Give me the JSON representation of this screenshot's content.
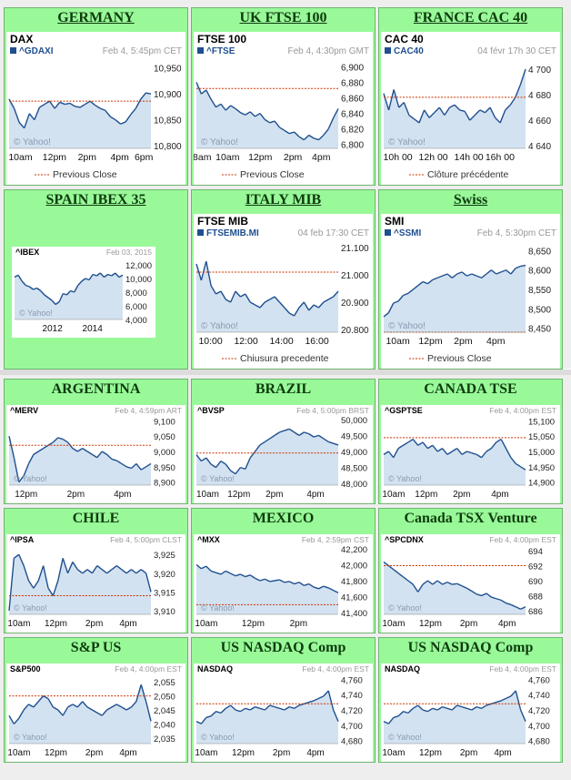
{
  "colors": {
    "panel_bg": "#99f999",
    "line": "#1f4f8f",
    "fill": "#d3e2f1",
    "prev_close": "#cc3300"
  },
  "chart_data": [
    {
      "panel_title": "GERMANY",
      "underline": true,
      "type": "area",
      "label": "DAX",
      "symbol": "^GDAXI",
      "timestamp": "Feb 4, 5:45pm CET",
      "yticks": [
        "10,950",
        "10,900",
        "10,850",
        "10,800"
      ],
      "ylim": [
        10795,
        10960
      ],
      "prev_close": 10886,
      "xticks": [
        "10am",
        "12pm",
        "2pm",
        "4pm",
        "6pm"
      ],
      "xpos": [
        0.08,
        0.32,
        0.55,
        0.78,
        0.95
      ],
      "values": [
        10890,
        10872,
        10845,
        10834,
        10862,
        10850,
        10874,
        10880,
        10886,
        10872,
        10884,
        10880,
        10882,
        10876,
        10874,
        10880,
        10886,
        10878,
        10872,
        10868,
        10856,
        10850,
        10842,
        10846,
        10860,
        10872,
        10890,
        10902,
        10900
      ],
      "watermark": "© Yahoo!",
      "legend": "Previous Close",
      "mini": false
    },
    {
      "panel_title": "UK FTSE 100",
      "underline": true,
      "type": "area",
      "label": "FTSE 100",
      "symbol": "^FTSE",
      "timestamp": "Feb 4, 4:30pm GMT",
      "yticks": [
        "6,900",
        "6,880",
        "6,860",
        "6,840",
        "6,820",
        "6,800"
      ],
      "ylim": [
        6795,
        6905
      ],
      "prev_close": 6872,
      "xticks": [
        "8am",
        "10am",
        "12pm",
        "2pm",
        "4pm"
      ],
      "xpos": [
        0.04,
        0.22,
        0.45,
        0.68,
        0.88
      ],
      "values": [
        6880,
        6865,
        6870,
        6858,
        6848,
        6852,
        6844,
        6850,
        6846,
        6841,
        6838,
        6842,
        6836,
        6840,
        6832,
        6828,
        6830,
        6822,
        6818,
        6814,
        6816,
        6810,
        6806,
        6812,
        6808,
        6806,
        6812,
        6820,
        6834,
        6846
      ],
      "watermark": "© Yahoo!",
      "legend": "Previous Close",
      "mini": false
    },
    {
      "panel_title": "FRANCE CAC 40",
      "underline": true,
      "type": "area",
      "label": "CAC 40",
      "symbol": "CAC40",
      "timestamp": "04 févr 17h 30 CET",
      "yticks": [
        "4 700",
        "4 680",
        "4 660",
        "4 640"
      ],
      "ylim": [
        4638,
        4705
      ],
      "prev_close": 4678,
      "xticks": [
        "10h 00",
        "12h 00",
        "14h 00",
        "16h 00"
      ],
      "xpos": [
        0.1,
        0.35,
        0.6,
        0.82
      ],
      "values": [
        4681,
        4668,
        4684,
        4670,
        4674,
        4664,
        4661,
        4658,
        4668,
        4662,
        4666,
        4670,
        4664,
        4670,
        4672,
        4668,
        4667,
        4660,
        4664,
        4668,
        4666,
        4670,
        4662,
        4658,
        4668,
        4672,
        4678,
        4688,
        4700
      ],
      "watermark": "© Yahoo!",
      "legend": "Clôture précédente",
      "mini": false
    },
    {
      "panel_title": "SPAIN IBEX 35",
      "underline": true,
      "type": "area",
      "label": "^IBEX",
      "symbol": "",
      "timestamp": "Feb 03, 2015",
      "yticks": [
        "12,000",
        "10,000",
        "8,000",
        "6,000",
        "4,000"
      ],
      "ylim": [
        4000,
        12800
      ],
      "prev_close": null,
      "xticks": [
        "2012",
        "2014"
      ],
      "xpos": [
        0.35,
        0.72
      ],
      "values": [
        10200,
        10500,
        9600,
        9000,
        8800,
        8400,
        8600,
        8200,
        7600,
        7200,
        6800,
        6200,
        6600,
        7800,
        7600,
        8200,
        8000,
        9000,
        9600,
        10000,
        9800,
        10600,
        10400,
        10800,
        10200,
        10600,
        10400,
        10800,
        10200,
        10500
      ],
      "watermark": "© Yahoo!",
      "legend": "",
      "mini": true
    },
    {
      "panel_title": "ITALY MIB",
      "underline": true,
      "type": "area",
      "label": "FTSE MIB",
      "symbol": "FTSEMIB.MI",
      "timestamp": "04 feb 17:30 CET",
      "yticks": [
        "21.100",
        "21.000",
        "20.900",
        "20.800"
      ],
      "ylim": [
        20790,
        21110
      ],
      "prev_close": 21010,
      "xticks": [
        "10:00",
        "12:00",
        "14:00",
        "16:00"
      ],
      "xpos": [
        0.1,
        0.35,
        0.6,
        0.85
      ],
      "values": [
        21040,
        20980,
        21050,
        20960,
        20930,
        20940,
        20910,
        20900,
        20940,
        20920,
        20930,
        20900,
        20890,
        20880,
        20900,
        20910,
        20920,
        20900,
        20880,
        20860,
        20850,
        20880,
        20900,
        20870,
        20890,
        20880,
        20900,
        20910,
        20920,
        20940
      ],
      "watermark": "© Yahoo!",
      "legend": "Chiusura precedente",
      "mini": false
    },
    {
      "panel_title": "Swiss",
      "underline": true,
      "type": "area",
      "label": "SMI",
      "symbol": "^SSMI",
      "timestamp": "Feb 4, 5:30pm CET",
      "yticks": [
        "8,650",
        "8,600",
        "8,550",
        "8,500",
        "8,450"
      ],
      "ylim": [
        8440,
        8665
      ],
      "prev_close": 8440,
      "xticks": [
        "10am",
        "12pm",
        "2pm",
        "4pm"
      ],
      "xpos": [
        0.1,
        0.33,
        0.56,
        0.79
      ],
      "values": [
        8480,
        8490,
        8515,
        8520,
        8535,
        8540,
        8550,
        8560,
        8570,
        8565,
        8575,
        8580,
        8585,
        8590,
        8580,
        8590,
        8595,
        8585,
        8590,
        8585,
        8580,
        8590,
        8600,
        8590,
        8595,
        8600,
        8590,
        8605,
        8610,
        8612
      ],
      "watermark": "© Yahoo!",
      "legend": "Previous Close",
      "mini": false
    },
    {
      "panel_title": "ARGENTINA",
      "underline": false,
      "type": "area",
      "label": "^MERV",
      "symbol": "",
      "timestamp": "Feb 4, 4:59pm ART",
      "yticks": [
        "9,100",
        "9,050",
        "9,000",
        "8,950",
        "8,900"
      ],
      "ylim": [
        8890,
        9110
      ],
      "prev_close": 9020,
      "xticks": [
        "12pm",
        "2pm",
        "4pm"
      ],
      "xpos": [
        0.12,
        0.47,
        0.8
      ],
      "values": [
        9050,
        8980,
        8900,
        8920,
        8960,
        8990,
        9000,
        9010,
        9020,
        9030,
        9045,
        9040,
        9030,
        9010,
        9000,
        9010,
        9000,
        8990,
        8980,
        9000,
        8990,
        8975,
        8970,
        8960,
        8950,
        8945,
        8960,
        8940,
        8950,
        8960
      ],
      "watermark": "© Yahoo!",
      "legend": "",
      "mini": true
    },
    {
      "panel_title": "BRAZIL",
      "underline": false,
      "type": "area",
      "label": "^BVSP",
      "symbol": "",
      "timestamp": "Feb 4, 5:00pm BRST",
      "yticks": [
        "50,000",
        "49,500",
        "49,000",
        "48,500",
        "48,000"
      ],
      "ylim": [
        47950,
        50050
      ],
      "prev_close": 48950,
      "xticks": [
        "10am",
        "12pm",
        "2pm",
        "4pm"
      ],
      "xpos": [
        0.08,
        0.3,
        0.55,
        0.84
      ],
      "values": [
        48900,
        48700,
        48800,
        48600,
        48500,
        48700,
        48600,
        48400,
        48300,
        48500,
        48450,
        48800,
        49000,
        49200,
        49300,
        49400,
        49500,
        49600,
        49650,
        49700,
        49600,
        49500,
        49600,
        49550,
        49450,
        49500,
        49400,
        49300,
        49250,
        49200
      ],
      "watermark": "© Yahoo!",
      "legend": "",
      "mini": true
    },
    {
      "panel_title": "CANADA TSE",
      "underline": false,
      "type": "area",
      "label": "^GSPTSE",
      "symbol": "",
      "timestamp": "Feb 4, 4:00pm EST",
      "yticks": [
        "15,100",
        "15,050",
        "15,000",
        "14,950",
        "14,900"
      ],
      "ylim": [
        14890,
        15110
      ],
      "prev_close": 15045,
      "xticks": [
        "10am",
        "12pm",
        "2pm",
        "4pm"
      ],
      "xpos": [
        0.07,
        0.3,
        0.55,
        0.82
      ],
      "values": [
        14990,
        15000,
        14980,
        15010,
        15020,
        15030,
        15040,
        15020,
        15030,
        15010,
        15020,
        15000,
        15010,
        14990,
        15000,
        15010,
        14990,
        15000,
        14995,
        14990,
        14980,
        15000,
        15010,
        15030,
        15040,
        15010,
        14980,
        14960,
        14950,
        14940
      ],
      "watermark": "© Yahoo!",
      "legend": "",
      "mini": true
    },
    {
      "panel_title": "CHILE",
      "underline": false,
      "type": "area",
      "label": "^IPSA",
      "symbol": "",
      "timestamp": "Feb 4, 5:00pm CLST",
      "yticks": [
        "3,925",
        "3,920",
        "3,915",
        "3,910"
      ],
      "ylim": [
        3909,
        3927
      ],
      "prev_close": 3914,
      "xticks": [
        "10am",
        "12pm",
        "2pm",
        "4pm"
      ],
      "xpos": [
        0.07,
        0.33,
        0.6,
        0.84
      ],
      "values": [
        3910,
        3924,
        3925,
        3922,
        3918,
        3916,
        3918,
        3922,
        3916,
        3914,
        3918,
        3924,
        3920,
        3923,
        3921,
        3920,
        3921,
        3920,
        3922,
        3921,
        3920,
        3921,
        3922,
        3921,
        3920,
        3921,
        3920,
        3921,
        3920,
        3915
      ],
      "watermark": "© Yahoo!",
      "legend": "",
      "mini": true
    },
    {
      "panel_title": "MEXICO",
      "underline": false,
      "type": "area",
      "label": "^MXX",
      "symbol": "",
      "timestamp": "Feb 4, 2:59pm CST",
      "yticks": [
        "42,200",
        "42,000",
        "41,800",
        "41,600",
        "41,400"
      ],
      "ylim": [
        41380,
        42220
      ],
      "prev_close": 41500,
      "xticks": [
        "10am",
        "12pm",
        "2pm"
      ],
      "xpos": [
        0.07,
        0.4,
        0.72
      ],
      "values": [
        42000,
        41950,
        41980,
        41920,
        41900,
        41880,
        41920,
        41890,
        41860,
        41880,
        41850,
        41870,
        41830,
        41800,
        41820,
        41790,
        41800,
        41810,
        41780,
        41790,
        41760,
        41780,
        41740,
        41760,
        41720,
        41700,
        41730,
        41710,
        41680,
        41650
      ],
      "watermark": "© Yahoo!",
      "legend": "",
      "mini": true
    },
    {
      "panel_title": "Canada TSX Venture",
      "underline": false,
      "type": "area",
      "label": "^SPCDNX",
      "symbol": "",
      "timestamp": "Feb 4, 4:00pm EST",
      "yticks": [
        "694",
        "692",
        "690",
        "688",
        "686"
      ],
      "ylim": [
        685.5,
        694.5
      ],
      "prev_close": 692,
      "xticks": [
        "10am",
        "12pm",
        "2pm",
        "4pm"
      ],
      "xpos": [
        0.07,
        0.33,
        0.6,
        0.87
      ],
      "values": [
        692.5,
        692,
        691.5,
        691,
        690.5,
        690,
        689.5,
        688.5,
        689.5,
        690,
        689.5,
        690,
        689.5,
        689.8,
        689.5,
        689.6,
        689.3,
        689,
        688.6,
        688.2,
        688,
        688.3,
        687.8,
        687.6,
        687.4,
        687,
        686.8,
        686.5,
        686.2,
        686.5
      ],
      "watermark": "© Yahoo!",
      "legend": "",
      "mini": true
    },
    {
      "panel_title": "S&P US",
      "underline": false,
      "type": "area",
      "label": "S&P500",
      "symbol": "",
      "timestamp": "Feb 4, 4:00pm EST",
      "yticks": [
        "2,055",
        "2,050",
        "2,045",
        "2,040",
        "2,035"
      ],
      "ylim": [
        2033,
        2057
      ],
      "prev_close": 2050,
      "xticks": [
        "10am",
        "12pm",
        "2pm",
        "4pm"
      ],
      "xpos": [
        0.07,
        0.33,
        0.6,
        0.84
      ],
      "values": [
        2043,
        2040,
        2042,
        2045,
        2047,
        2046,
        2048,
        2050,
        2049,
        2046,
        2045,
        2043,
        2046,
        2047,
        2046,
        2048,
        2046,
        2045,
        2044,
        2043,
        2045,
        2046,
        2047,
        2046,
        2045,
        2046,
        2048,
        2054,
        2048,
        2041
      ],
      "watermark": "© Yahoo!",
      "legend": "",
      "mini": true
    },
    {
      "panel_title": "US NASDAQ Comp",
      "underline": false,
      "type": "area",
      "label": "NASDAQ",
      "symbol": "",
      "timestamp": "Feb 4, 4:00pm EST",
      "yticks": [
        "4,760",
        "4,740",
        "4,720",
        "4,700",
        "4,680"
      ],
      "ylim": [
        4676,
        4764
      ],
      "prev_close": 4728,
      "xticks": [
        "10am",
        "12pm",
        "2pm",
        "4pm"
      ],
      "xpos": [
        0.07,
        0.33,
        0.6,
        0.84
      ],
      "values": [
        4705,
        4702,
        4710,
        4712,
        4718,
        4716,
        4722,
        4726,
        4720,
        4718,
        4722,
        4720,
        4724,
        4722,
        4720,
        4726,
        4724,
        4722,
        4720,
        4724,
        4722,
        4726,
        4728,
        4730,
        4732,
        4735,
        4738,
        4745,
        4720,
        4705
      ],
      "watermark": "© Yahoo!",
      "legend": "",
      "mini": true
    },
    {
      "panel_title": "US NASDAQ Comp",
      "underline": false,
      "type": "area",
      "label": "NASDAQ",
      "symbol": "",
      "timestamp": "Feb 4, 4:00pm EST",
      "yticks": [
        "4,760",
        "4,740",
        "4,720",
        "4,700",
        "4,680"
      ],
      "ylim": [
        4676,
        4764
      ],
      "prev_close": 4728,
      "xticks": [
        "10am",
        "12pm",
        "2pm",
        "4pm"
      ],
      "xpos": [
        0.07,
        0.33,
        0.6,
        0.84
      ],
      "values": [
        4705,
        4702,
        4710,
        4712,
        4718,
        4716,
        4722,
        4726,
        4720,
        4718,
        4722,
        4720,
        4724,
        4722,
        4720,
        4726,
        4724,
        4722,
        4720,
        4724,
        4722,
        4726,
        4728,
        4730,
        4732,
        4735,
        4738,
        4745,
        4720,
        4705
      ],
      "watermark": "© Yahoo!",
      "legend": "",
      "mini": true
    }
  ]
}
